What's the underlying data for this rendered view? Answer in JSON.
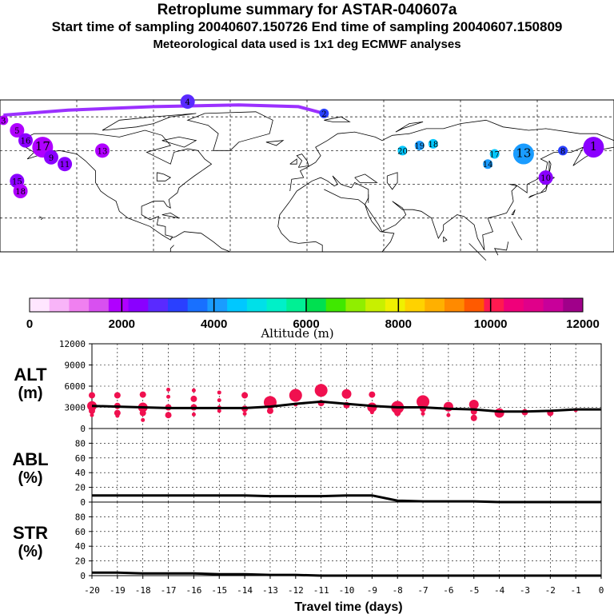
{
  "header": {
    "title": "Retroplume summary for ASTAR-040607a",
    "sampling": "Start time of sampling 20040607.150726     End time of sampling 20040607.150809",
    "met": "Meteorological data used is 1x1 deg ECMWF analyses"
  },
  "map": {
    "description": "World map with retroplume cluster positions colored by altitude",
    "clusters": [
      {
        "label": "3",
        "lon": -178,
        "lat": 78,
        "alt": 2100,
        "size": 1
      },
      {
        "label": "5",
        "lon": -170,
        "lat": 72,
        "alt": 2000,
        "size": 2
      },
      {
        "label": "16",
        "lon": -165,
        "lat": 66,
        "alt": 2300,
        "size": 2
      },
      {
        "label": "15",
        "lon": -170,
        "lat": 42,
        "alt": 2200,
        "size": 2
      },
      {
        "label": "18",
        "lon": -168,
        "lat": 36,
        "alt": 1800,
        "size": 2
      },
      {
        "label": "17",
        "lon": -155,
        "lat": 62,
        "alt": 2100,
        "size": 3
      },
      {
        "label": "9",
        "lon": -150,
        "lat": 56,
        "alt": 2200,
        "size": 2
      },
      {
        "label": "11",
        "lon": -142,
        "lat": 52,
        "alt": 2400,
        "size": 2
      },
      {
        "label": "13",
        "lon": -120,
        "lat": 60,
        "alt": 1900,
        "size": 2
      },
      {
        "label": "4",
        "lon": -70,
        "lat": 89,
        "alt": 2700,
        "size": 2
      },
      {
        "label": "2",
        "lon": 10,
        "lat": 82,
        "alt": 3000,
        "size": 1
      },
      {
        "label": "20",
        "lon": 56,
        "lat": 60,
        "alt": 4400,
        "size": 1
      },
      {
        "label": "19",
        "lon": 66,
        "lat": 63,
        "alt": 4200,
        "size": 1
      },
      {
        "label": "18",
        "lon": 74,
        "lat": 64,
        "alt": 4300,
        "size": 1
      },
      {
        "label": "17",
        "lon": 110,
        "lat": 58,
        "alt": 4300,
        "size": 1
      },
      {
        "label": "14",
        "lon": 106,
        "lat": 52,
        "alt": 4200,
        "size": 1
      },
      {
        "label": "13",
        "lon": 127,
        "lat": 58,
        "alt": 4000,
        "size": 3
      },
      {
        "label": "10",
        "lon": 140,
        "lat": 44,
        "alt": 2300,
        "size": 2
      },
      {
        "label": "8",
        "lon": 150,
        "lat": 60,
        "alt": 3000,
        "size": 1
      },
      {
        "label": "1",
        "lon": 168,
        "lat": 62,
        "alt": 2500,
        "size": 3
      }
    ]
  },
  "colorbar": {
    "labels": [
      "0",
      "2000",
      "4000",
      "6000",
      "8000",
      "10000",
      "12000"
    ],
    "title": "Altitude (m)",
    "colors": [
      "#ffe6ff",
      "#f8b4f8",
      "#f080f0",
      "#d850f0",
      "#b000ff",
      "#8a00ff",
      "#5a2aff",
      "#2a40ff",
      "#1870ff",
      "#1a9cff",
      "#00c8ff",
      "#00e0e8",
      "#00f0c8",
      "#00f094",
      "#00e050",
      "#40e800",
      "#90ee00",
      "#c8f000",
      "#f0f000",
      "#ffd200",
      "#ffb000",
      "#ff8a00",
      "#ff5a00",
      "#ff1a50",
      "#f0007a",
      "#e0008a",
      "#c8009a",
      "#a0008a"
    ],
    "vmin": 0,
    "vmax": 12000
  },
  "chart_data": [
    {
      "type": "line",
      "panel": "ALT",
      "ylabel": "ALT\n(m)",
      "ylabel_top": "ALT",
      "ylabel_bottom": "(m)",
      "ylim": [
        0,
        12000
      ],
      "yticks": [
        "0",
        "3000",
        "6000",
        "9000",
        "12000"
      ],
      "ytick_values": [
        0,
        3000,
        6000,
        9000,
        12000
      ],
      "x": [
        -20,
        -19,
        -18,
        -17,
        -16,
        -15,
        -14,
        -13,
        -12,
        -11,
        -10,
        -9,
        -8,
        -7,
        -6,
        -5,
        -4,
        -3,
        -2,
        -1,
        0
      ],
      "series": [
        {
          "name": "mean altitude",
          "values": [
            3200,
            3100,
            3000,
            2900,
            2900,
            2900,
            2900,
            3100,
            3500,
            3800,
            3500,
            3200,
            3000,
            3000,
            2800,
            2700,
            2400,
            2400,
            2500,
            2700,
            2700
          ]
        }
      ],
      "scatter": [
        {
          "day": -20,
          "alt": 4700,
          "size": 2
        },
        {
          "day": -20,
          "alt": 3200,
          "size": 3
        },
        {
          "day": -20,
          "alt": 2500,
          "size": 2
        },
        {
          "day": -20,
          "alt": 1900,
          "size": 1
        },
        {
          "day": -19,
          "alt": 4700,
          "size": 2
        },
        {
          "day": -19,
          "alt": 3200,
          "size": 2
        },
        {
          "day": -19,
          "alt": 2200,
          "size": 2
        },
        {
          "day": -19,
          "alt": 1800,
          "size": 1
        },
        {
          "day": -18,
          "alt": 4800,
          "size": 2
        },
        {
          "day": -18,
          "alt": 3000,
          "size": 3
        },
        {
          "day": -18,
          "alt": 2200,
          "size": 2
        },
        {
          "day": -18,
          "alt": 1200,
          "size": 1
        },
        {
          "day": -17,
          "alt": 5500,
          "size": 1
        },
        {
          "day": -17,
          "alt": 4500,
          "size": 1
        },
        {
          "day": -17,
          "alt": 3000,
          "size": 2
        },
        {
          "day": -17,
          "alt": 1900,
          "size": 2
        },
        {
          "day": -16,
          "alt": 5400,
          "size": 1
        },
        {
          "day": -16,
          "alt": 4200,
          "size": 2
        },
        {
          "day": -16,
          "alt": 3000,
          "size": 2
        },
        {
          "day": -16,
          "alt": 2000,
          "size": 1
        },
        {
          "day": -15,
          "alt": 5100,
          "size": 1
        },
        {
          "day": -15,
          "alt": 4000,
          "size": 1
        },
        {
          "day": -15,
          "alt": 3000,
          "size": 1
        },
        {
          "day": -15,
          "alt": 2500,
          "size": 1
        },
        {
          "day": -14,
          "alt": 4700,
          "size": 2
        },
        {
          "day": -14,
          "alt": 2800,
          "size": 2
        },
        {
          "day": -14,
          "alt": 2100,
          "size": 1
        },
        {
          "day": -13,
          "alt": 3700,
          "size": 4
        },
        {
          "day": -13,
          "alt": 2500,
          "size": 2
        },
        {
          "day": -12,
          "alt": 4700,
          "size": 4
        },
        {
          "day": -12,
          "alt": 3400,
          "size": 1
        },
        {
          "day": -11,
          "alt": 5400,
          "size": 4
        },
        {
          "day": -11,
          "alt": 3600,
          "size": 2
        },
        {
          "day": -10,
          "alt": 4900,
          "size": 3
        },
        {
          "day": -10,
          "alt": 3300,
          "size": 2
        },
        {
          "day": -9,
          "alt": 4800,
          "size": 2
        },
        {
          "day": -9,
          "alt": 3000,
          "size": 3
        },
        {
          "day": -9,
          "alt": 2300,
          "size": 1
        },
        {
          "day": -8,
          "alt": 3000,
          "size": 4
        },
        {
          "day": -8,
          "alt": 2200,
          "size": 2
        },
        {
          "day": -7,
          "alt": 3800,
          "size": 4
        },
        {
          "day": -7,
          "alt": 2800,
          "size": 2
        },
        {
          "day": -7,
          "alt": 2100,
          "size": 1
        },
        {
          "day": -6,
          "alt": 3100,
          "size": 3
        },
        {
          "day": -6,
          "alt": 1900,
          "size": 1
        },
        {
          "day": -5,
          "alt": 3400,
          "size": 3
        },
        {
          "day": -5,
          "alt": 2400,
          "size": 2
        },
        {
          "day": -5,
          "alt": 1500,
          "size": 2
        },
        {
          "day": -4,
          "alt": 2200,
          "size": 3
        },
        {
          "day": -3,
          "alt": 2300,
          "size": 2
        },
        {
          "day": -2,
          "alt": 2200,
          "size": 2
        },
        {
          "day": -1,
          "alt": 2600,
          "size": 1
        }
      ]
    },
    {
      "type": "line",
      "panel": "ABL",
      "ylabel": "ABL\n(%)",
      "ylabel_top": "ABL",
      "ylabel_bottom": "(%)",
      "ylim": [
        0,
        100
      ],
      "yticks": [
        "0",
        "20",
        "40",
        "60",
        "80"
      ],
      "ytick_values": [
        0,
        20,
        40,
        60,
        80
      ],
      "x": [
        -20,
        -19,
        -18,
        -17,
        -16,
        -15,
        -14,
        -13,
        -12,
        -11,
        -10,
        -9,
        -8,
        -7,
        -6,
        -5,
        -4,
        -3,
        -2,
        -1,
        0
      ],
      "series": [
        {
          "name": "ABL fraction",
          "values": [
            9,
            9,
            9,
            9,
            9,
            9,
            9,
            8,
            8,
            8,
            9,
            9,
            2,
            1,
            1,
            1,
            0,
            0,
            0,
            0,
            0
          ]
        }
      ]
    },
    {
      "type": "line",
      "panel": "STR",
      "ylabel": "STR\n(%)",
      "ylabel_top": "STR",
      "ylabel_bottom": "(%)",
      "ylim": [
        0,
        100
      ],
      "yticks": [
        "0",
        "20",
        "40",
        "60",
        "80"
      ],
      "ytick_values": [
        0,
        20,
        40,
        60,
        80
      ],
      "x": [
        -20,
        -19,
        -18,
        -17,
        -16,
        -15,
        -14,
        -13,
        -12,
        -11,
        -10,
        -9,
        -8,
        -7,
        -6,
        -5,
        -4,
        -3,
        -2,
        -1,
        0
      ],
      "series": [
        {
          "name": "stratospheric fraction",
          "values": [
            4,
            4,
            3,
            3,
            3,
            2,
            2,
            1,
            1,
            0,
            0,
            0,
            0,
            0,
            0,
            0,
            0,
            0,
            0,
            0,
            0
          ]
        }
      ],
      "xlabel": "Travel time (days)",
      "xticks": [
        "-20",
        "-19",
        "-18",
        "-17",
        "-16",
        "-15",
        "-14",
        "-13",
        "-12",
        "-11",
        "-10",
        "-9",
        "-8",
        "-7",
        "-6",
        "-5",
        "-4",
        "-3",
        "-2",
        "-1",
        "0"
      ],
      "xlim": [
        -20,
        0
      ]
    }
  ]
}
